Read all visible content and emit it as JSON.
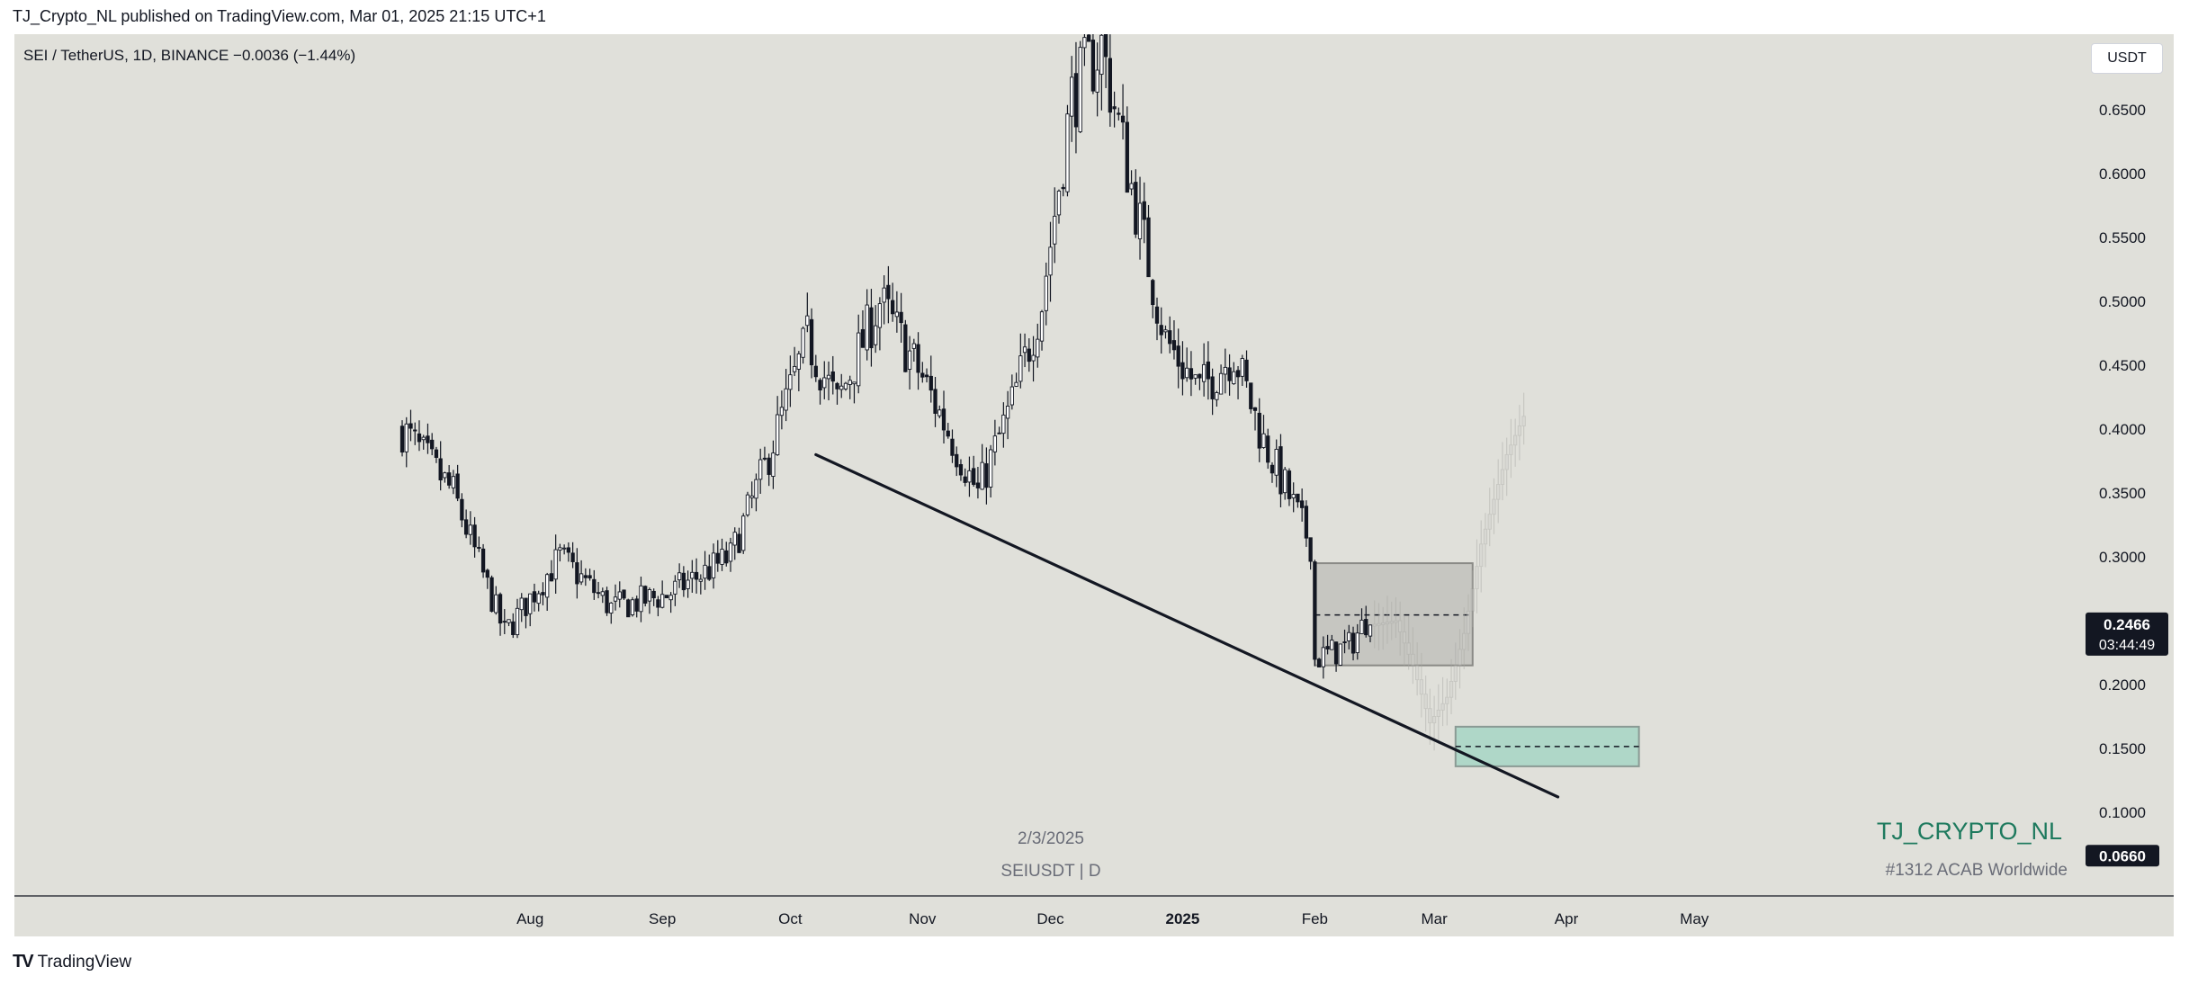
{
  "header": {
    "published_by": "TJ_Crypto_NL published on TradingView.com, Mar 01, 2025 21:15 UTC+1"
  },
  "symbol_info": {
    "text": "SEI / TetherUS, 1D, BINANCE  −0.0036 (−1.44%)"
  },
  "currency_button": {
    "label": "USDT"
  },
  "footer": {
    "logo_text": "TradingView",
    "logo_mark": "TV"
  },
  "colors": {
    "background": "#e0e0da",
    "candle_up": "#ffffff",
    "candle_down": "#131722",
    "zone_gray": "#b8b8b4",
    "zone_green": "#a8d8c8"
  },
  "chart_data": {
    "type": "candlestick",
    "symbol": "SEIUSDT",
    "interval": "D",
    "exchange": "BINANCE",
    "change": "−0.0036 (−1.44%)",
    "ylim": [
      0.06,
      0.7
    ],
    "y_ticks": [
      "0.6500",
      "0.6000",
      "0.5500",
      "0.5000",
      "0.4500",
      "0.4000",
      "0.3500",
      "0.3000",
      "0.2000",
      "0.1500",
      "0.1000"
    ],
    "y_tick_values": [
      0.65,
      0.6,
      0.55,
      0.5,
      0.45,
      0.4,
      0.35,
      0.3,
      0.2,
      0.15,
      0.1
    ],
    "x_ticks": [
      "Aug",
      "Sep",
      "Oct",
      "Nov",
      "Dec",
      "2025",
      "Feb",
      "Mar",
      "Apr",
      "May"
    ],
    "x_tick_bold": [
      false,
      false,
      false,
      false,
      false,
      true,
      false,
      false,
      false,
      false
    ],
    "x_tick_days": [
      -197,
      -166,
      -136,
      -105,
      -75,
      -44,
      -13,
      15,
      46,
      76
    ],
    "last_price": {
      "value": 0.2466,
      "label": "0.2466",
      "countdown": "03:44:49"
    },
    "low_label": {
      "value": 0.066,
      "label": "0.0660"
    },
    "trendline": {
      "from": {
        "day": -130,
        "price": 0.38
      },
      "to": {
        "day": 44,
        "price": 0.112
      }
    },
    "range_box": {
      "from_day": -13,
      "to_day": 24,
      "top": 0.295,
      "bottom": 0.215,
      "mid": 0.2545
    },
    "target_box": {
      "from_day": 20,
      "to_day": 63,
      "top": 0.167,
      "bottom": 0.136,
      "mid": 0.1515
    },
    "projection_path": [
      {
        "day": 0,
        "price": 0.2466
      },
      {
        "day": 6,
        "price": 0.25
      },
      {
        "day": 10,
        "price": 0.215
      },
      {
        "day": 14,
        "price": 0.17
      },
      {
        "day": 18,
        "price": 0.19
      },
      {
        "day": 22,
        "price": 0.24
      },
      {
        "day": 26,
        "price": 0.31
      },
      {
        "day": 32,
        "price": 0.38
      },
      {
        "day": 36,
        "price": 0.41
      }
    ],
    "key_points": [
      {
        "day": -227,
        "price": 0.4
      },
      {
        "day": -215,
        "price": 0.35
      },
      {
        "day": -203,
        "price": 0.24
      },
      {
        "day": -190,
        "price": 0.3
      },
      {
        "day": -178,
        "price": 0.26
      },
      {
        "day": -165,
        "price": 0.27
      },
      {
        "day": -150,
        "price": 0.3
      },
      {
        "day": -142,
        "price": 0.37
      },
      {
        "day": -132,
        "price": 0.47
      },
      {
        "day": -125,
        "price": 0.42
      },
      {
        "day": -115,
        "price": 0.5
      },
      {
        "day": -105,
        "price": 0.44
      },
      {
        "day": -92,
        "price": 0.35
      },
      {
        "day": -84,
        "price": 0.42
      },
      {
        "day": -77,
        "price": 0.5
      },
      {
        "day": -70,
        "price": 0.66
      },
      {
        "day": -63,
        "price": 0.7
      },
      {
        "day": -56,
        "price": 0.59
      },
      {
        "day": -48,
        "price": 0.47
      },
      {
        "day": -40,
        "price": 0.43
      },
      {
        "day": -32,
        "price": 0.46
      },
      {
        "day": -25,
        "price": 0.39
      },
      {
        "day": -18,
        "price": 0.34
      },
      {
        "day": -14,
        "price": 0.31
      },
      {
        "day": -13,
        "price": 0.22
      },
      {
        "day": -5,
        "price": 0.23
      },
      {
        "day": 5,
        "price": 0.28
      },
      {
        "day": 10,
        "price": 0.25
      }
    ],
    "annotations": {
      "date_label": "2/3/2025",
      "symbol_label": "SEIUSDT | D",
      "watermark_title": "TJ_CRYPTO_NL",
      "watermark_sub": "#1312 ACAB Worldwide"
    }
  }
}
